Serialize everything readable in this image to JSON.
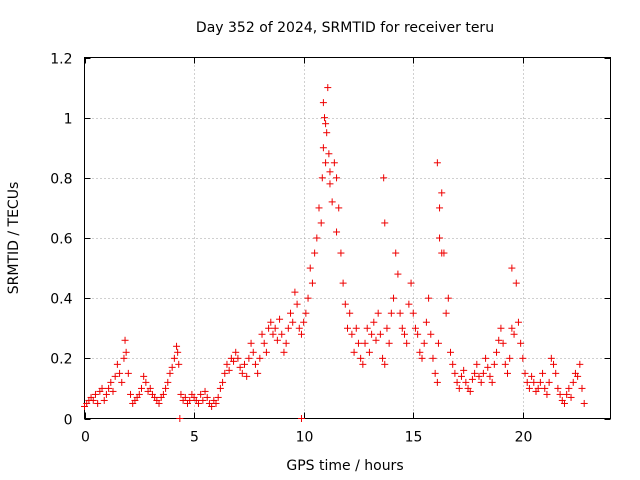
{
  "chart_data": {
    "type": "scatter",
    "title": "Day 352 of 2024, SRMTID for receiver teru",
    "xlabel": "GPS time / hours",
    "ylabel": "SRMTID / TECUs",
    "xlim": [
      0,
      24
    ],
    "ylim": [
      0,
      1.2
    ],
    "xticks": [
      0,
      5,
      10,
      15,
      20
    ],
    "xtick_labels": [
      "0",
      "5",
      "10",
      "15",
      "20"
    ],
    "yticks": [
      0,
      0.2,
      0.4,
      0.6,
      0.8,
      1.0,
      1.2
    ],
    "ytick_labels": [
      "0",
      "0.2",
      "0.4",
      "0.6",
      "0.8",
      "1",
      "1.2"
    ],
    "grid": true,
    "marker": "+",
    "series": [
      {
        "name": "SRMTID",
        "color": "#ee0000",
        "x": [
          0.0,
          0.1,
          0.2,
          0.3,
          0.4,
          0.5,
          0.6,
          0.7,
          0.8,
          0.9,
          1.0,
          1.1,
          1.2,
          1.3,
          1.4,
          1.5,
          1.6,
          1.7,
          1.8,
          1.85,
          1.9,
          2.0,
          2.1,
          2.2,
          2.3,
          2.4,
          2.5,
          2.6,
          2.7,
          2.8,
          2.9,
          3.0,
          3.1,
          3.2,
          3.3,
          3.4,
          3.5,
          3.6,
          3.7,
          3.8,
          3.9,
          4.0,
          4.1,
          4.2,
          4.25,
          4.3,
          4.4,
          4.5,
          4.6,
          4.7,
          4.8,
          4.9,
          5.0,
          5.1,
          5.2,
          5.3,
          5.4,
          5.5,
          5.6,
          5.7,
          5.8,
          5.9,
          6.0,
          6.1,
          6.2,
          6.3,
          6.4,
          6.5,
          6.6,
          6.7,
          6.8,
          6.9,
          7.0,
          7.1,
          7.2,
          7.3,
          7.4,
          7.5,
          7.6,
          7.7,
          7.8,
          7.9,
          8.0,
          8.1,
          8.2,
          8.3,
          8.4,
          8.5,
          8.6,
          8.7,
          8.8,
          8.9,
          9.0,
          9.1,
          9.2,
          9.3,
          9.4,
          9.5,
          9.6,
          9.7,
          9.8,
          9.9,
          10.0,
          10.1,
          10.2,
          10.3,
          10.4,
          10.5,
          10.6,
          10.7,
          10.8,
          10.85,
          10.9,
          10.95,
          11.0,
          11.05,
          11.1,
          11.15,
          11.2,
          11.3,
          11.4,
          11.5,
          11.6,
          11.7,
          11.8,
          11.9,
          12.0,
          12.1,
          12.2,
          12.3,
          12.4,
          12.5,
          12.6,
          12.7,
          12.8,
          12.9,
          13.0,
          13.1,
          13.2,
          13.3,
          13.4,
          13.5,
          13.6,
          13.7,
          13.8,
          13.9,
          14.0,
          14.1,
          14.2,
          14.3,
          14.4,
          14.5,
          14.6,
          14.7,
          14.8,
          14.9,
          15.0,
          15.1,
          15.2,
          15.3,
          15.4,
          15.5,
          15.6,
          15.7,
          15.8,
          15.9,
          16.0,
          16.1,
          16.15,
          16.2,
          16.3,
          16.4,
          16.5,
          16.6,
          16.7,
          16.8,
          16.9,
          17.0,
          17.1,
          17.2,
          17.3,
          17.4,
          17.5,
          17.6,
          17.7,
          17.8,
          17.9,
          18.0,
          18.1,
          18.2,
          18.3,
          18.4,
          18.5,
          18.6,
          18.7,
          18.8,
          18.9,
          19.0,
          19.1,
          19.2,
          19.3,
          19.4,
          19.5,
          19.6,
          19.7,
          19.8,
          19.9,
          20.0,
          20.1,
          20.2,
          20.3,
          20.4,
          20.5,
          20.6,
          20.7,
          20.8,
          20.9,
          21.0,
          21.1,
          21.2,
          21.3,
          21.4,
          21.5,
          21.6,
          21.7,
          21.8,
          21.9,
          22.0,
          22.1,
          22.2,
          22.3,
          22.4,
          22.5,
          22.6,
          22.7,
          22.8,
          4.35,
          9.9,
          13.65,
          13.7,
          16.1,
          16.2,
          16.3,
          19.5,
          10.9,
          11.0,
          11.2,
          11.5
        ],
        "y": [
          0.04,
          0.05,
          0.06,
          0.07,
          0.06,
          0.08,
          0.05,
          0.09,
          0.1,
          0.06,
          0.08,
          0.1,
          0.12,
          0.09,
          0.14,
          0.18,
          0.15,
          0.12,
          0.2,
          0.26,
          0.22,
          0.15,
          0.08,
          0.05,
          0.06,
          0.07,
          0.08,
          0.1,
          0.14,
          0.12,
          0.09,
          0.1,
          0.08,
          0.07,
          0.06,
          0.05,
          0.07,
          0.08,
          0.1,
          0.12,
          0.15,
          0.17,
          0.2,
          0.24,
          0.22,
          0.18,
          0.08,
          0.06,
          0.07,
          0.05,
          0.06,
          0.08,
          0.07,
          0.06,
          0.05,
          0.08,
          0.06,
          0.09,
          0.07,
          0.05,
          0.04,
          0.06,
          0.05,
          0.07,
          0.1,
          0.12,
          0.15,
          0.18,
          0.16,
          0.2,
          0.19,
          0.22,
          0.2,
          0.17,
          0.15,
          0.18,
          0.14,
          0.2,
          0.25,
          0.22,
          0.18,
          0.15,
          0.2,
          0.28,
          0.25,
          0.22,
          0.3,
          0.32,
          0.28,
          0.3,
          0.26,
          0.33,
          0.28,
          0.22,
          0.25,
          0.3,
          0.35,
          0.32,
          0.42,
          0.38,
          0.3,
          0.28,
          0.32,
          0.35,
          0.4,
          0.5,
          0.45,
          0.55,
          0.6,
          0.7,
          0.65,
          0.8,
          0.9,
          1.0,
          0.85,
          0.95,
          1.1,
          0.88,
          0.78,
          0.72,
          0.85,
          0.62,
          0.7,
          0.55,
          0.45,
          0.38,
          0.3,
          0.35,
          0.28,
          0.22,
          0.3,
          0.25,
          0.2,
          0.18,
          0.25,
          0.3,
          0.22,
          0.28,
          0.32,
          0.26,
          0.35,
          0.28,
          0.2,
          0.18,
          0.3,
          0.25,
          0.35,
          0.4,
          0.55,
          0.48,
          0.35,
          0.3,
          0.28,
          0.25,
          0.38,
          0.45,
          0.35,
          0.3,
          0.28,
          0.22,
          0.2,
          0.25,
          0.32,
          0.4,
          0.28,
          0.2,
          0.15,
          0.12,
          0.25,
          0.6,
          0.75,
          0.55,
          0.35,
          0.4,
          0.22,
          0.18,
          0.15,
          0.12,
          0.1,
          0.14,
          0.16,
          0.12,
          0.1,
          0.09,
          0.13,
          0.15,
          0.18,
          0.14,
          0.12,
          0.15,
          0.2,
          0.17,
          0.14,
          0.12,
          0.18,
          0.22,
          0.26,
          0.3,
          0.25,
          0.18,
          0.15,
          0.2,
          0.3,
          0.28,
          0.45,
          0.32,
          0.25,
          0.2,
          0.15,
          0.12,
          0.1,
          0.14,
          0.12,
          0.09,
          0.1,
          0.12,
          0.15,
          0.1,
          0.08,
          0.12,
          0.2,
          0.18,
          0.15,
          0.1,
          0.08,
          0.06,
          0.05,
          0.08,
          0.1,
          0.07,
          0.12,
          0.15,
          0.14,
          0.18,
          0.1,
          0.05,
          0.0,
          0.0,
          0.8,
          0.65,
          0.85,
          0.7,
          0.55,
          0.5,
          1.05,
          0.98,
          0.82,
          0.8
        ]
      }
    ]
  }
}
